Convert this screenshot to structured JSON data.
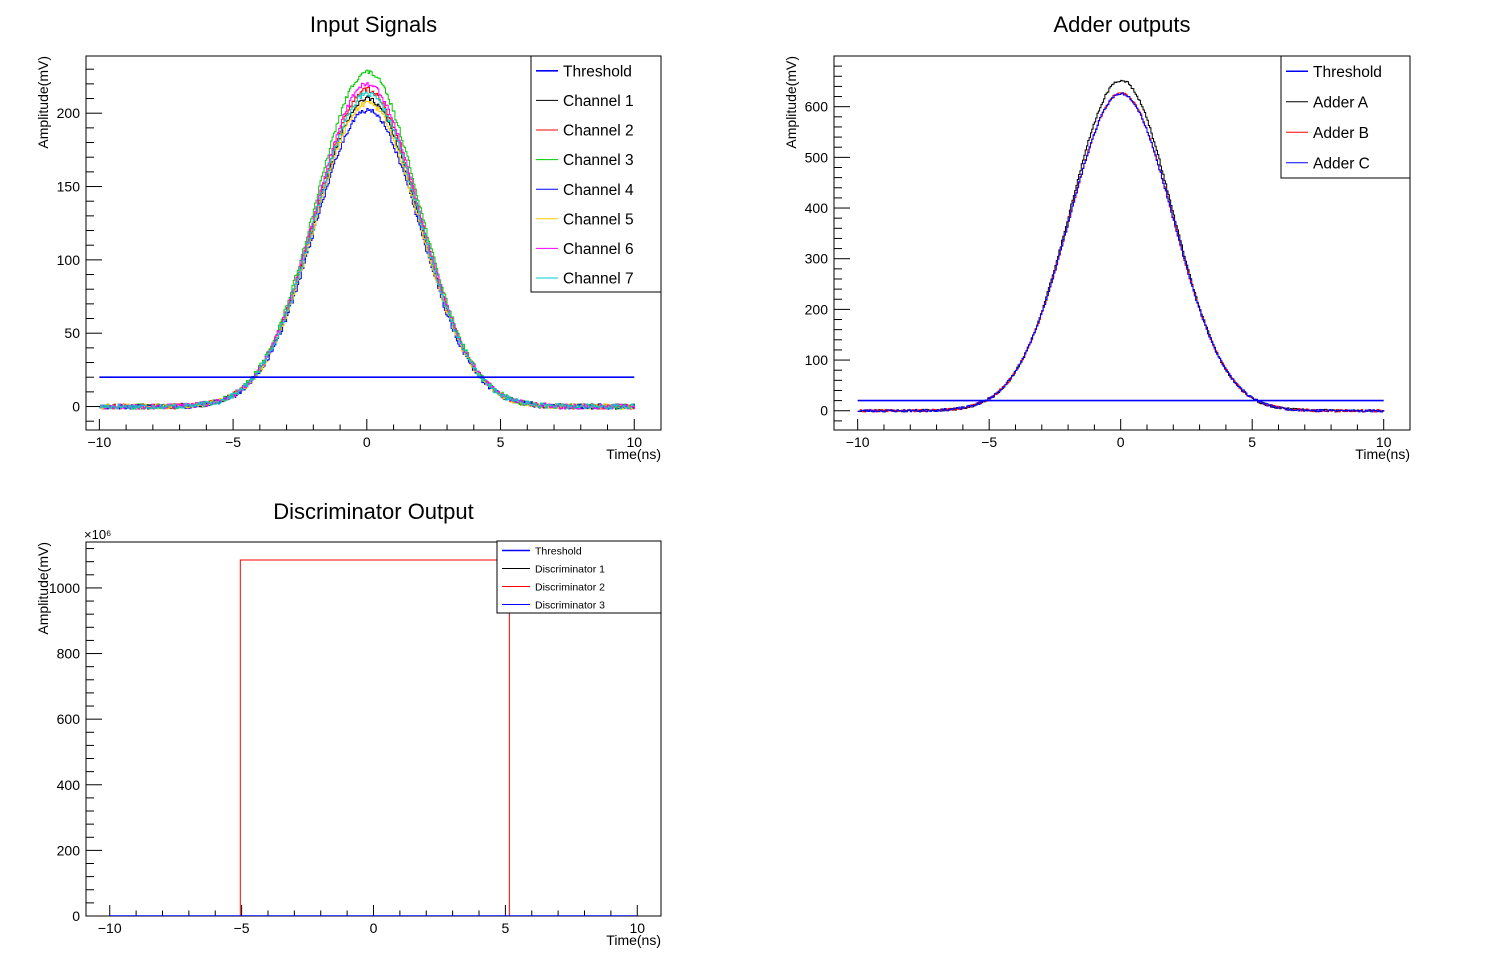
{
  "chart_data": [
    {
      "type": "line",
      "title": "Input Signals",
      "xlabel": "Time(ns)",
      "ylabel": "Amplitude(mV)",
      "xlim": [
        -10.5,
        11
      ],
      "ylim": [
        -16,
        239
      ],
      "xticks": [
        -10,
        -5,
        0,
        5,
        10
      ],
      "yticks": [
        0,
        50,
        100,
        150,
        200
      ],
      "threshold": 20,
      "legend_position": "top-right",
      "series": [
        {
          "name": "Threshold",
          "color": "#0000ff",
          "kind": "flat",
          "value": 20
        },
        {
          "name": "Channel 1",
          "color": "#000000",
          "kind": "gauss",
          "peak": 210,
          "sigma": 1.95,
          "noise": 1.8,
          "seed": 11
        },
        {
          "name": "Channel 2",
          "color": "#ff0000",
          "kind": "gauss",
          "peak": 216,
          "sigma": 1.95,
          "noise": 1.8,
          "seed": 12
        },
        {
          "name": "Channel 3",
          "color": "#00cc00",
          "kind": "gauss",
          "peak": 228,
          "sigma": 1.95,
          "noise": 1.8,
          "seed": 13
        },
        {
          "name": "Channel 4",
          "color": "#0000ff",
          "kind": "gauss",
          "peak": 202,
          "sigma": 1.95,
          "noise": 1.8,
          "seed": 14
        },
        {
          "name": "Channel 5",
          "color": "#ffcc00",
          "kind": "gauss",
          "peak": 207,
          "sigma": 1.95,
          "noise": 1.8,
          "seed": 15
        },
        {
          "name": "Channel 6",
          "color": "#ff00ff",
          "kind": "gauss",
          "peak": 220,
          "sigma": 1.95,
          "noise": 1.8,
          "seed": 16
        },
        {
          "name": "Channel 7",
          "color": "#00cccc",
          "kind": "gauss",
          "peak": 213,
          "sigma": 1.95,
          "noise": 1.8,
          "seed": 17
        }
      ]
    },
    {
      "type": "line",
      "title": "Adder outputs",
      "xlabel": "Time(ns)",
      "ylabel": "Amplitude(mV)",
      "xlim": [
        -10.9,
        11
      ],
      "ylim": [
        -38,
        700
      ],
      "xticks": [
        -10,
        -5,
        0,
        5,
        10
      ],
      "yticks": [
        0,
        100,
        200,
        300,
        400,
        500,
        600
      ],
      "threshold": 20,
      "legend_position": "top-right",
      "series": [
        {
          "name": "Threshold",
          "color": "#0000ff",
          "kind": "flat",
          "value": 20
        },
        {
          "name": "Adder A",
          "color": "#000000",
          "kind": "gauss",
          "peak": 652,
          "sigma": 1.95,
          "noise": 2.5,
          "seed": 21
        },
        {
          "name": "Adder B",
          "color": "#ff0000",
          "kind": "gauss",
          "peak": 627,
          "sigma": 1.97,
          "noise": 2.5,
          "seed": 22
        },
        {
          "name": "Adder C",
          "color": "#0000ff",
          "kind": "gauss",
          "peak": 626,
          "sigma": 1.97,
          "noise": 2.5,
          "seed": 23
        }
      ]
    },
    {
      "type": "line",
      "title": "Discriminator Output",
      "xlabel": "Time(ns)",
      "ylabel": "Amplitude(mV)",
      "y_exponent": "×10⁶",
      "xlim": [
        -10.9,
        10.9
      ],
      "ylim": [
        0,
        1140
      ],
      "xticks": [
        -10,
        -5,
        0,
        5,
        10
      ],
      "yticks": [
        0,
        200,
        400,
        600,
        800,
        1000
      ],
      "legend_position": "top-right",
      "series": [
        {
          "name": "Threshold",
          "color": "#0000ff",
          "kind": "flat",
          "value": 0
        },
        {
          "name": "Discriminator 1",
          "color": "#000000",
          "kind": "flat",
          "value": 0
        },
        {
          "name": "Discriminator 2",
          "color": "#ff0000",
          "kind": "pulse",
          "low": 0,
          "high": 1085,
          "x_on": -5.05,
          "x_off": 5.15
        },
        {
          "name": "Discriminator 3",
          "color": "#0000ff",
          "kind": "flat",
          "value": 0
        }
      ]
    }
  ]
}
